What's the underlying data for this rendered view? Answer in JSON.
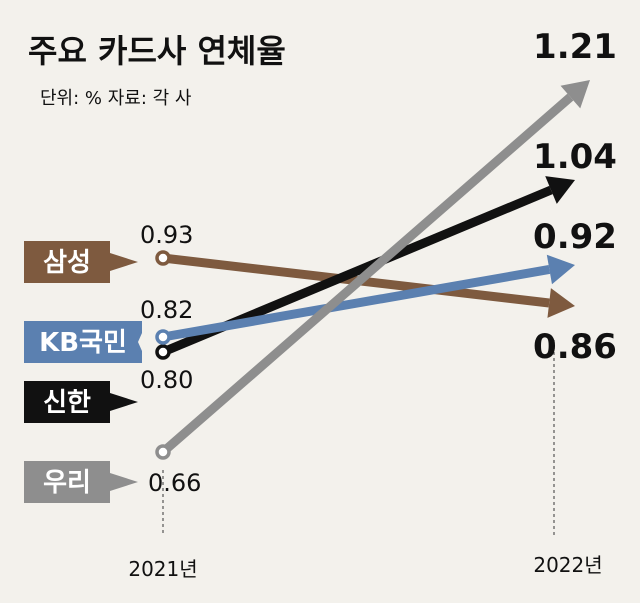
{
  "chart_data": {
    "type": "line",
    "title": "주요 카드사 연체율",
    "subtitle": "단위: %   자료: 각 사",
    "x": [
      "2021년",
      "2022년"
    ],
    "series": [
      {
        "name": "삼성",
        "values": [
          0.93,
          0.86
        ],
        "color": "#7e5a3f"
      },
      {
        "name": "KB국민",
        "values": [
          0.82,
          0.92
        ],
        "color": "#5b80b0"
      },
      {
        "name": "신한",
        "values": [
          0.8,
          1.04
        ],
        "color": "#111111"
      },
      {
        "name": "우리",
        "values": [
          0.66,
          1.21
        ],
        "color": "#8e8e8e"
      }
    ],
    "start_labels": [
      "0.93",
      "0.82",
      "0.80",
      "0.66"
    ],
    "end_labels": [
      "0.86",
      "0.92",
      "1.04",
      "1.21"
    ]
  }
}
